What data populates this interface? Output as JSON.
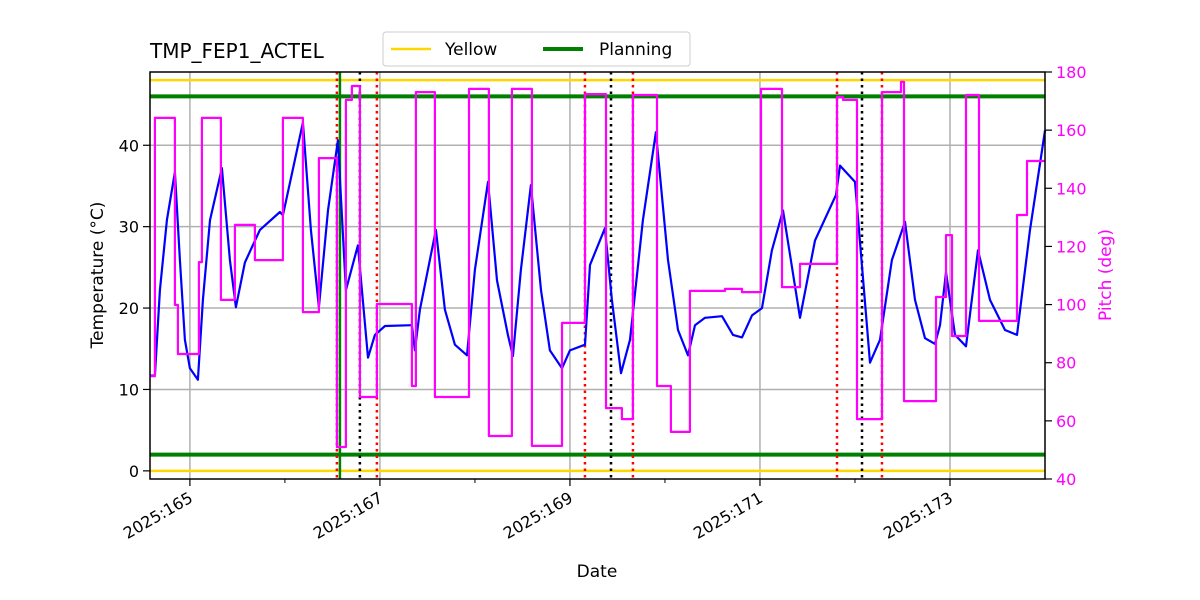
{
  "chart_data": {
    "type": "line",
    "title": "TMP_FEP1_ACTEL",
    "xlabel": "Date",
    "ylabel": "Temperature ($^\\circ$C)",
    "ylabel_display": "Temperature (°C)",
    "y2label": "Pitch (deg)",
    "xlim": [
      164.58,
      174.0
    ],
    "ylim": [
      -1,
      49
    ],
    "y2lim": [
      40,
      180
    ],
    "grid": true,
    "legend_placement": "top-center (above plot)",
    "x_major_ticks": [
      165,
      167,
      169,
      171,
      173
    ],
    "x_minor_ticks": [
      166,
      168,
      170,
      172
    ],
    "x_tick_labels": [
      "2025:165",
      "2025:167",
      "2025:169",
      "2025:171",
      "2025:173"
    ],
    "y_ticks": [
      0,
      10,
      20,
      30,
      40
    ],
    "y_tick_labels": [
      "0",
      "10",
      "20",
      "30",
      "40"
    ],
    "y2_ticks": [
      40,
      60,
      80,
      100,
      120,
      140,
      160,
      180
    ],
    "y2_tick_labels": [
      "40",
      "60",
      "80",
      "100",
      "120",
      "140",
      "160",
      "180"
    ],
    "legend": [
      {
        "name": "Yellow",
        "color": "#ffd700"
      },
      {
        "name": "Planning",
        "color": "#008000"
      }
    ],
    "limit_lines": [
      {
        "name": "Yellow",
        "value": 48,
        "color": "#ffd700"
      },
      {
        "name": "Yellow",
        "value": 0,
        "color": "#ffd700"
      },
      {
        "name": "Planning",
        "value": 46,
        "color": "#008000"
      },
      {
        "name": "Planning",
        "value": 2,
        "color": "#008000"
      }
    ],
    "vlines": [
      {
        "x": 166.547,
        "style": "red-dotted",
        "color": "#ff0000"
      },
      {
        "x": 166.579,
        "style": "green-solid",
        "color": "#008000"
      },
      {
        "x": 166.789,
        "style": "black-dotted",
        "color": "#000000"
      },
      {
        "x": 166.968,
        "style": "red-dotted",
        "color": "#ff0000"
      },
      {
        "x": 169.158,
        "style": "red-dotted",
        "color": "#ff0000"
      },
      {
        "x": 169.432,
        "style": "black-dotted",
        "color": "#000000"
      },
      {
        "x": 169.663,
        "style": "red-dotted",
        "color": "#ff0000"
      },
      {
        "x": 171.811,
        "style": "red-dotted",
        "color": "#ff0000"
      },
      {
        "x": 172.074,
        "style": "black-dotted",
        "color": "#000000"
      },
      {
        "x": 172.284,
        "style": "red-dotted",
        "color": "#ff0000"
      }
    ],
    "series": [
      {
        "name": "Temperature",
        "axis": "left",
        "color": "#0000ff",
        "x": [
          164.579,
          164.632,
          164.684,
          164.758,
          164.842,
          164.895,
          164.947,
          165.0,
          165.084,
          165.137,
          165.211,
          165.337,
          165.421,
          165.484,
          165.579,
          165.737,
          165.947,
          165.979,
          166.105,
          166.189,
          166.274,
          166.358,
          166.453,
          166.558,
          166.642,
          166.768,
          166.874,
          166.947,
          167.053,
          167.337,
          167.368,
          167.421,
          167.589,
          167.684,
          167.789,
          167.916,
          168.0,
          168.137,
          168.232,
          168.347,
          168.4,
          168.484,
          168.589,
          168.695,
          168.789,
          168.916,
          169.0,
          169.158,
          169.211,
          169.368,
          169.442,
          169.537,
          169.632,
          169.768,
          169.905,
          170.032,
          170.137,
          170.242,
          170.316,
          170.421,
          170.6,
          170.716,
          170.811,
          170.916,
          171.021,
          171.126,
          171.242,
          171.421,
          171.579,
          171.8,
          171.842,
          172.0,
          172.158,
          172.263,
          172.389,
          172.526,
          172.632,
          172.737,
          172.842,
          172.895,
          172.958,
          173.053,
          173.168,
          173.295,
          173.421,
          173.579,
          173.705,
          173.842,
          174.0
        ],
        "y": [
          11.7,
          11.7,
          22.2,
          30.8,
          36.7,
          25.9,
          16.1,
          12.6,
          11.2,
          21.0,
          30.8,
          37.2,
          25.9,
          20.1,
          25.6,
          29.6,
          31.8,
          31.4,
          38.2,
          42.8,
          29.6,
          20.1,
          32.0,
          40.6,
          22.2,
          27.7,
          13.9,
          16.7,
          17.8,
          17.9,
          14.8,
          19.8,
          29.6,
          19.8,
          15.5,
          14.2,
          24.7,
          35.5,
          23.4,
          16.7,
          14.1,
          24.7,
          35.1,
          22.2,
          14.8,
          12.6,
          14.8,
          15.5,
          25.3,
          29.8,
          21.0,
          12.0,
          16.1,
          30.8,
          41.6,
          25.9,
          17.3,
          14.2,
          17.9,
          18.8,
          19.0,
          16.7,
          16.4,
          19.1,
          20.0,
          27.1,
          32.0,
          18.8,
          28.3,
          33.9,
          37.5,
          35.5,
          13.3,
          16.1,
          25.9,
          30.6,
          21.0,
          16.3,
          15.6,
          17.9,
          24.4,
          16.7,
          15.3,
          27.1,
          21.0,
          17.3,
          16.7,
          29.6,
          41.8
        ]
      },
      {
        "name": "Pitch",
        "axis": "right",
        "color": "#ff00ff",
        "drawstyle": "steps-post",
        "x": [
          164.579,
          164.632,
          164.842,
          164.874,
          165.095,
          165.126,
          165.326,
          165.474,
          165.684,
          165.979,
          166.189,
          166.358,
          166.547,
          166.642,
          166.705,
          166.789,
          166.968,
          167.337,
          167.379,
          167.579,
          167.937,
          168.147,
          168.389,
          168.6,
          168.916,
          169.158,
          169.379,
          169.547,
          169.663,
          169.916,
          170.063,
          170.263,
          170.632,
          170.811,
          171.011,
          171.232,
          171.421,
          171.811,
          171.874,
          172.021,
          172.284,
          172.484,
          172.516,
          172.853,
          172.958,
          173.021,
          173.168,
          173.305,
          173.705,
          173.811,
          174.0
        ],
        "y": [
          75.4,
          164.2,
          99.9,
          83.0,
          114.6,
          164.2,
          101.6,
          127.4,
          115.3,
          164.2,
          97.4,
          150.4,
          51.0,
          170.4,
          175.2,
          68.2,
          100.2,
          72.0,
          173.1,
          68.2,
          174.2,
          54.8,
          174.2,
          51.4,
          93.7,
          172.4,
          64.4,
          60.6,
          172.1,
          72.0,
          56.2,
          104.7,
          105.4,
          104.3,
          174.2,
          106.0,
          114.0,
          171.4,
          170.4,
          60.6,
          173.1,
          176.6,
          66.8,
          102.6,
          123.9,
          89.2,
          172.1,
          94.4,
          130.8,
          149.4,
          149.4
        ]
      }
    ]
  }
}
